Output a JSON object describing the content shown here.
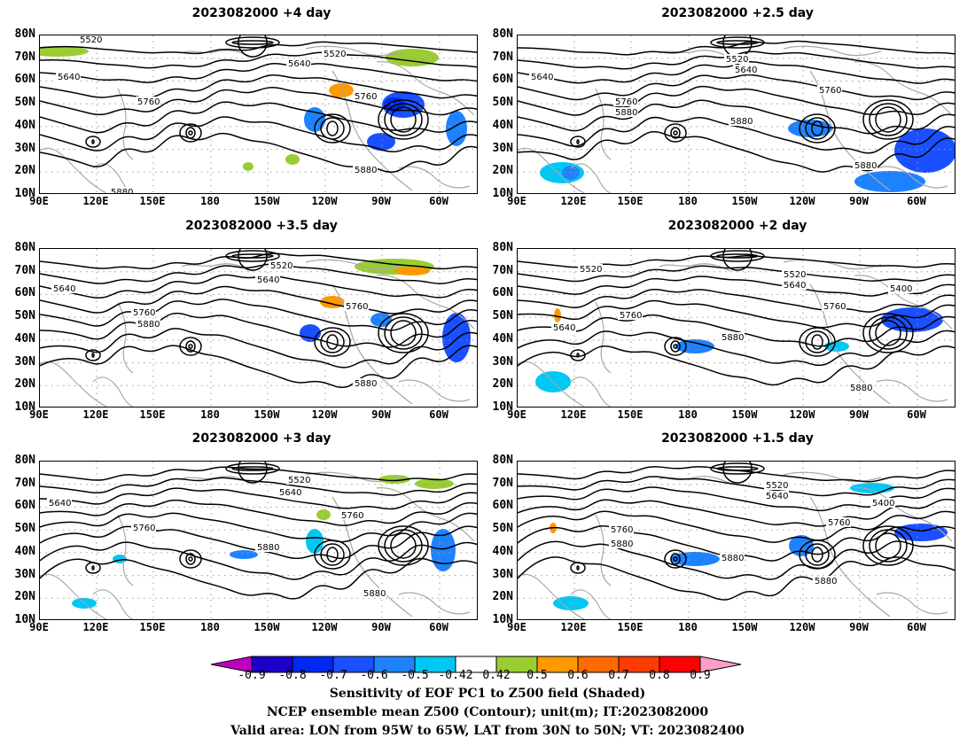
{
  "panels": [
    {
      "title": "2023082000  +4 day"
    },
    {
      "title": "2023082000  +2.5 day"
    },
    {
      "title": "2023082000  +3.5 day"
    },
    {
      "title": "2023082000  +2 day"
    },
    {
      "title": "2023082000  +3 day"
    },
    {
      "title": "2023082000  +1.5 day"
    }
  ],
  "lat_ticks": [
    "80N",
    "70N",
    "60N",
    "50N",
    "40N",
    "30N",
    "20N",
    "10N"
  ],
  "lon_ticks": [
    "90E",
    "120E",
    "150E",
    "180",
    "150W",
    "120W",
    "90W",
    "60W"
  ],
  "contour_labels": [
    "5520",
    "5640",
    "5760",
    "5880",
    "5400"
  ],
  "colorbar": {
    "colors": [
      "#c000c0",
      "#1a00c8",
      "#0028f0",
      "#1a50ff",
      "#1e82ff",
      "#00c8f5",
      "#ffffff",
      "#9acd32",
      "#ff9900",
      "#ff6a00",
      "#ff3c00",
      "#ff0000",
      "#ff9ec8"
    ],
    "labels": [
      "-0.9",
      "-0.8",
      "-0.7",
      "-0.6",
      "-0.5",
      "-0.42",
      "0.42",
      "0.5",
      "0.6",
      "0.7",
      "0.8",
      "0.9"
    ]
  },
  "caption": {
    "line1": "Sensitivity of EOF PC1 to Z500 field (Shaded)",
    "line2": "NCEP ensemble mean Z500 (Contour); unit(m); IT:2023082000",
    "line3": "Valid area: LON from 95W to 65W, LAT from 30N to 50N; VT: 2023082400"
  }
}
